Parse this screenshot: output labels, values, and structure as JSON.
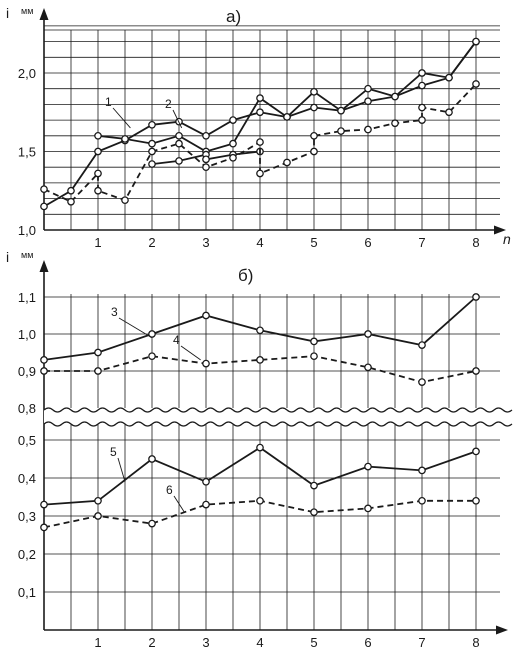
{
  "chart_data": [
    {
      "type": "line",
      "title": "а)",
      "ylabel": "i",
      "ylabel_unit": "мм",
      "xlabel": "n",
      "xlim": [
        0,
        8
      ],
      "ylim": [
        1.0,
        2.3
      ],
      "grid": true,
      "x_ticks": [
        "1",
        "2",
        "3",
        "4",
        "5",
        "6",
        "7",
        "8"
      ],
      "y_ticks": [
        "1,0",
        "1,5",
        "2,0"
      ],
      "series": [
        {
          "name": "1",
          "style": "solid",
          "points": [
            [
              0,
              1.15
            ],
            [
              0.5,
              1.25
            ],
            [
              1,
              1.5
            ],
            [
              1.5,
              1.57
            ],
            [
              2,
              1.67
            ],
            [
              2.5,
              1.69
            ],
            [
              3,
              1.6
            ],
            [
              3.5,
              1.7
            ],
            [
              4,
              1.75
            ],
            [
              4.5,
              1.72
            ],
            [
              5,
              1.88
            ],
            [
              5.5,
              1.76
            ],
            [
              6,
              1.9
            ],
            [
              6.5,
              1.85
            ],
            [
              7,
              2.0
            ],
            [
              7.5,
              1.97
            ],
            [
              8,
              2.2
            ]
          ]
        },
        {
          "name": "",
          "style": "solid",
          "points": [
            [
              1,
              1.6
            ],
            [
              1.5,
              1.58
            ],
            [
              2,
              1.55
            ],
            [
              2.5,
              1.6
            ],
            [
              3,
              1.5
            ],
            [
              3.5,
              1.55
            ],
            [
              4,
              1.84
            ],
            [
              4.5,
              1.72
            ],
            [
              5,
              1.78
            ],
            [
              5.5,
              1.76
            ],
            [
              6,
              1.82
            ],
            [
              6.5,
              1.85
            ],
            [
              7,
              1.92
            ],
            [
              7.5,
              1.97
            ],
            [
              8,
              2.2
            ]
          ]
        },
        {
          "name": "",
          "style": "solid",
          "points": [
            [
              2,
              1.42
            ],
            [
              2.5,
              1.44
            ],
            [
              3,
              1.48
            ],
            [
              3,
              1.45
            ],
            [
              3.5,
              1.48
            ],
            [
              4,
              1.5
            ]
          ]
        },
        {
          "name": "2",
          "style": "dashed",
          "points": [
            [
              0,
              1.26
            ],
            [
              0.5,
              1.18
            ],
            [
              1,
              1.36
            ],
            [
              1,
              1.25
            ],
            [
              1.5,
              1.19
            ],
            [
              2,
              1.5
            ],
            [
              2.5,
              1.55
            ],
            [
              3,
              1.4
            ],
            [
              3.5,
              1.46
            ],
            [
              4,
              1.56
            ],
            [
              4,
              1.36
            ],
            [
              4.5,
              1.43
            ],
            [
              5,
              1.5
            ],
            [
              5,
              1.6
            ],
            [
              5.5,
              1.63
            ],
            [
              6,
              1.64
            ],
            [
              6.5,
              1.68
            ],
            [
              7,
              1.7
            ],
            [
              7,
              1.78
            ],
            [
              7.5,
              1.75
            ],
            [
              8,
              1.93
            ]
          ]
        }
      ]
    },
    {
      "type": "line",
      "title": "б)",
      "ylabel": "i",
      "ylabel_unit": "мм",
      "xlim": [
        0,
        8
      ],
      "ylim": [
        0,
        1.1
      ],
      "y_break": [
        0.55,
        0.8
      ],
      "grid": true,
      "x_ticks": [
        "1",
        "2",
        "3",
        "4",
        "5",
        "6",
        "7",
        "8"
      ],
      "y_ticks": [
        "0,1",
        "0,2",
        "0,3",
        "0,4",
        "0,5",
        "0,8",
        "0,9",
        "1,0",
        "1,1"
      ],
      "series": [
        {
          "name": "3",
          "style": "solid",
          "points": [
            [
              0,
              0.93
            ],
            [
              1,
              0.95
            ],
            [
              2,
              1.0
            ],
            [
              3,
              1.05
            ],
            [
              4,
              1.01
            ],
            [
              5,
              0.98
            ],
            [
              6,
              1.0
            ],
            [
              7,
              0.97
            ],
            [
              8,
              1.1
            ]
          ]
        },
        {
          "name": "4",
          "style": "dashed",
          "points": [
            [
              0,
              0.9
            ],
            [
              1,
              0.9
            ],
            [
              2,
              0.94
            ],
            [
              3,
              0.92
            ],
            [
              4,
              0.93
            ],
            [
              5,
              0.94
            ],
            [
              6,
              0.91
            ],
            [
              7,
              0.87
            ],
            [
              8,
              0.9
            ]
          ]
        },
        {
          "name": "5",
          "style": "solid",
          "points": [
            [
              0,
              0.33
            ],
            [
              1,
              0.34
            ],
            [
              2,
              0.45
            ],
            [
              3,
              0.39
            ],
            [
              4,
              0.48
            ],
            [
              5,
              0.38
            ],
            [
              6,
              0.43
            ],
            [
              7,
              0.42
            ],
            [
              8,
              0.47
            ]
          ]
        },
        {
          "name": "6",
          "style": "dashed",
          "points": [
            [
              0,
              0.27
            ],
            [
              1,
              0.3
            ],
            [
              2,
              0.28
            ],
            [
              3,
              0.33
            ],
            [
              4,
              0.34
            ],
            [
              5,
              0.31
            ],
            [
              6,
              0.32
            ],
            [
              7,
              0.34
            ],
            [
              8,
              0.34
            ]
          ]
        }
      ]
    }
  ]
}
